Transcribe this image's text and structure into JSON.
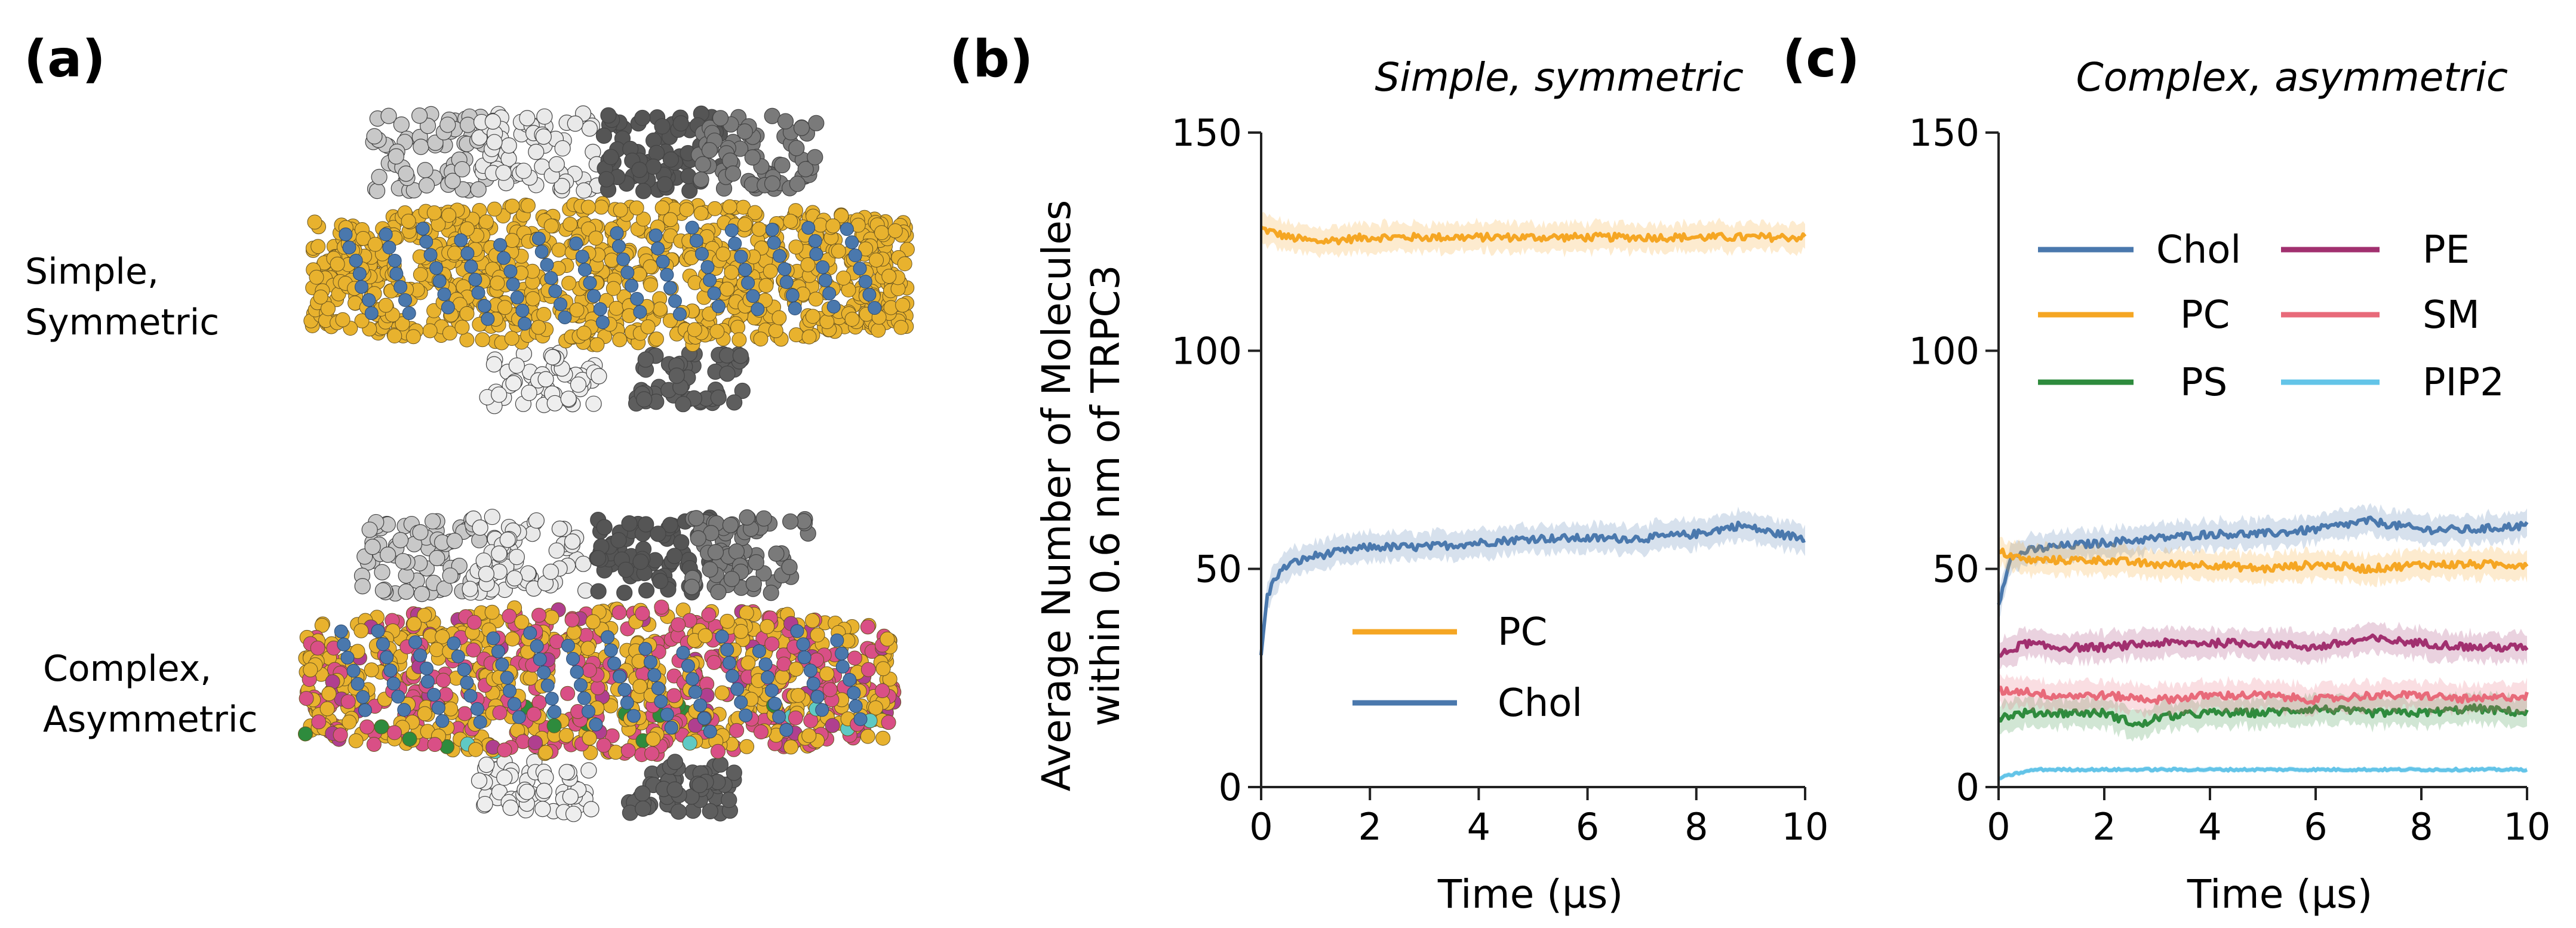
{
  "panels": {
    "a": {
      "label": "(a)",
      "structures": [
        {
          "line1": "Simple,",
          "line2": "Symmetric"
        },
        {
          "line1": "Complex,",
          "line2": "Asymmetric"
        }
      ]
    },
    "b": {
      "label": "(b)"
    },
    "c": {
      "label": "(c)"
    }
  },
  "colors": {
    "Chol": "#4a78ad",
    "PC": "#f5a623",
    "PS": "#2e8b3d",
    "PE": "#a1306f",
    "SM": "#e86a7a",
    "PIP2": "#63c4e8",
    "membrane_gold": "#e8b22e",
    "membrane_pink": "#d94f86",
    "protein_light": "#d9d9d9",
    "protein_dark": "#5a5a5a"
  },
  "chart_data": [
    {
      "type": "line",
      "panel": "b",
      "title": "Simple, symmetric",
      "xlabel": "Time (µs)",
      "ylabel_line1": "Average Number of Molecules",
      "ylabel_line2": "within 0.6 nm of TRPC3",
      "xlim": [
        0,
        10
      ],
      "ylim": [
        0,
        150
      ],
      "xticks": [
        0,
        2,
        4,
        6,
        8,
        10
      ],
      "yticks": [
        0,
        50,
        100,
        150
      ],
      "legend_position": "lower-center",
      "series": [
        {
          "name": "PC",
          "x": [
            0,
            0.5,
            1,
            2,
            3,
            4,
            5,
            6,
            7,
            8,
            9,
            10
          ],
          "values": [
            128,
            126,
            125,
            126,
            126,
            126,
            126,
            126,
            126,
            126,
            126,
            126
          ]
        },
        {
          "name": "Chol",
          "x": [
            0,
            0.1,
            0.25,
            0.5,
            1,
            1.5,
            2,
            3,
            4,
            5,
            6,
            7,
            8,
            8.8,
            9.5,
            10
          ],
          "values": [
            30,
            43,
            48,
            51,
            53,
            54,
            55,
            55,
            56,
            57,
            57,
            57,
            58,
            60,
            58,
            57
          ]
        }
      ]
    },
    {
      "type": "line",
      "panel": "c",
      "title": "Complex, asymmetric",
      "xlabel": "Time (µs)",
      "xlim": [
        0,
        10
      ],
      "ylim": [
        0,
        150
      ],
      "xticks": [
        0,
        2,
        4,
        6,
        8,
        10
      ],
      "yticks": [
        0,
        50,
        100,
        150
      ],
      "legend_position": "upper",
      "series": [
        {
          "name": "Chol",
          "x": [
            0,
            0.2,
            0.5,
            1,
            2,
            3,
            4,
            5,
            6,
            7,
            8,
            9,
            10
          ],
          "values": [
            42,
            52,
            54,
            55,
            56,
            57,
            58,
            58,
            59,
            61,
            59,
            59,
            60
          ]
        },
        {
          "name": "PC",
          "x": [
            0,
            0.5,
            1,
            2,
            3,
            4,
            5,
            6,
            7,
            8,
            9,
            10
          ],
          "values": [
            54,
            52,
            52,
            52,
            51,
            51,
            50,
            51,
            50,
            51,
            51,
            51
          ]
        },
        {
          "name": "PS",
          "x": [
            0,
            0.5,
            1,
            2,
            2.7,
            3,
            4,
            5,
            6,
            7,
            8,
            9,
            10
          ],
          "values": [
            16,
            17,
            17,
            17,
            14,
            16,
            17,
            17,
            18,
            17,
            17,
            18,
            17
          ]
        },
        {
          "name": "PE",
          "x": [
            0,
            0.5,
            1,
            2,
            3,
            4,
            5,
            6,
            7,
            8,
            9,
            10
          ],
          "values": [
            30,
            33,
            32,
            32,
            33,
            33,
            33,
            32,
            34,
            33,
            32,
            32
          ]
        },
        {
          "name": "SM",
          "x": [
            0,
            0.5,
            1,
            2,
            3,
            4,
            5,
            6,
            7,
            8,
            9,
            10
          ],
          "values": [
            22,
            22,
            21,
            21,
            20,
            21,
            21,
            20,
            21,
            21,
            20,
            21
          ]
        },
        {
          "name": "PIP2",
          "x": [
            0,
            0.3,
            0.7,
            1,
            2,
            4,
            6,
            8,
            10
          ],
          "values": [
            2,
            3,
            4,
            4,
            4,
            4,
            4,
            4,
            4
          ]
        }
      ]
    }
  ]
}
